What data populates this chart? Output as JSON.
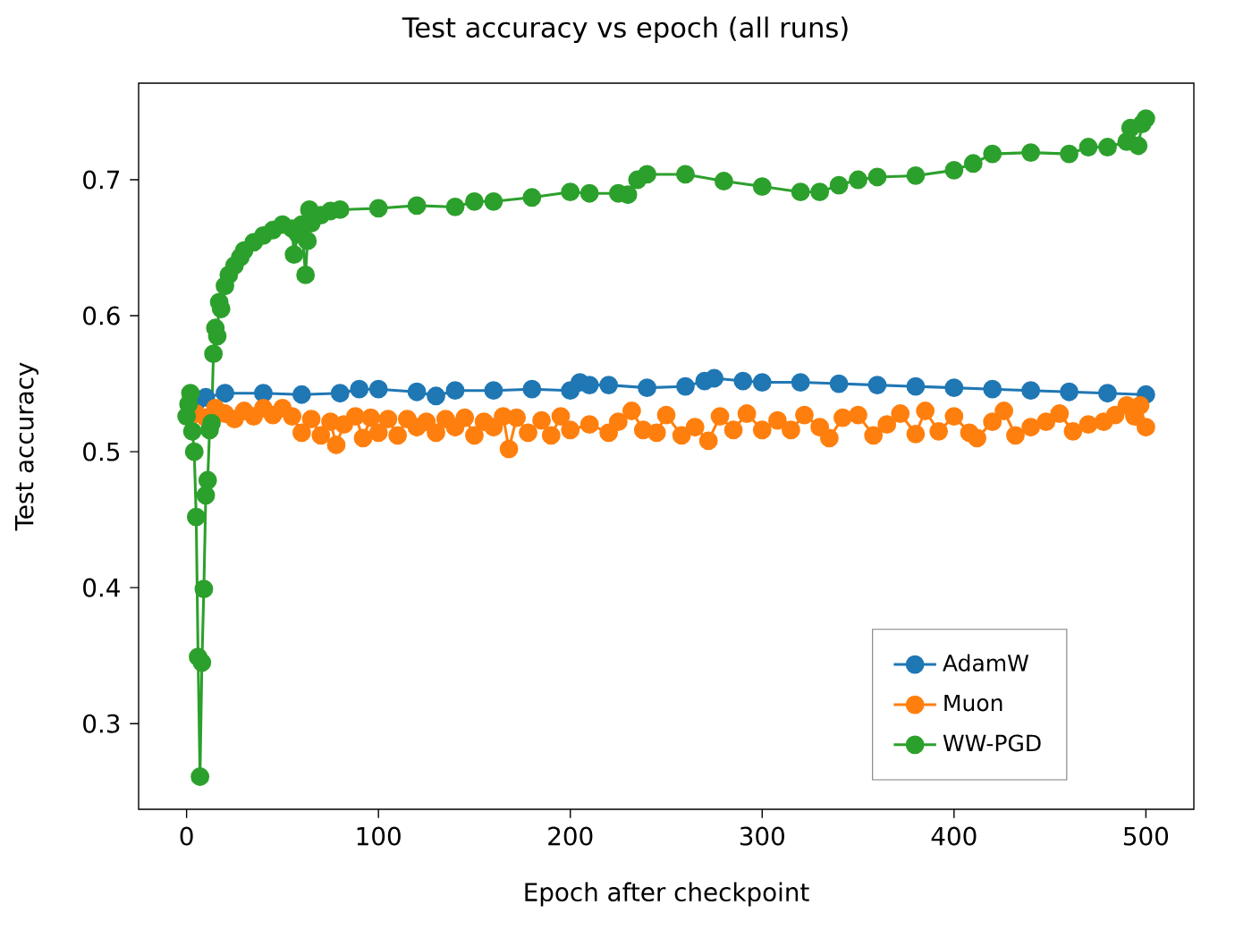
{
  "chart_data": {
    "type": "line",
    "title": "Test accuracy vs epoch (all runs)",
    "xlabel": "Epoch after checkpoint",
    "ylabel": "Test accuracy",
    "xlim": [
      -25,
      525
    ],
    "ylim": [
      0.237,
      0.771
    ],
    "xticks": [
      0,
      100,
      200,
      300,
      400,
      500
    ],
    "yticks": [
      0.3,
      0.4,
      0.5,
      0.6,
      0.7
    ],
    "grid": false,
    "legend": "bottom right",
    "marker": "circle",
    "line_style": "solid",
    "series": [
      {
        "name": "AdamW",
        "color": "#1f77b4",
        "x": [
          5,
          10,
          20,
          40,
          60,
          80,
          90,
          100,
          120,
          130,
          140,
          160,
          180,
          200,
          205,
          210,
          220,
          240,
          260,
          270,
          275,
          290,
          300,
          320,
          340,
          360,
          380,
          400,
          420,
          440,
          460,
          480,
          500
        ],
        "values": [
          0.536,
          0.54,
          0.543,
          0.543,
          0.542,
          0.543,
          0.546,
          0.546,
          0.544,
          0.541,
          0.545,
          0.545,
          0.546,
          0.545,
          0.551,
          0.549,
          0.549,
          0.547,
          0.548,
          0.552,
          0.554,
          0.552,
          0.551,
          0.551,
          0.55,
          0.549,
          0.548,
          0.547,
          0.546,
          0.545,
          0.544,
          0.543,
          0.542
        ]
      },
      {
        "name": "Muon",
        "color": "#ff7f0e",
        "x": [
          5,
          10,
          15,
          20,
          25,
          30,
          35,
          40,
          45,
          50,
          55,
          60,
          65,
          70,
          75,
          78,
          82,
          88,
          92,
          96,
          100,
          105,
          110,
          115,
          120,
          125,
          130,
          135,
          140,
          145,
          150,
          155,
          160,
          165,
          168,
          172,
          178,
          185,
          190,
          195,
          200,
          210,
          220,
          225,
          232,
          238,
          245,
          250,
          258,
          265,
          272,
          278,
          285,
          292,
          300,
          308,
          315,
          322,
          330,
          335,
          342,
          350,
          358,
          365,
          372,
          380,
          385,
          392,
          400,
          408,
          412,
          420,
          426,
          432,
          440,
          448,
          455,
          462,
          470,
          478,
          484,
          490,
          494,
          497,
          500
        ],
        "values": [
          0.528,
          0.525,
          0.532,
          0.528,
          0.524,
          0.53,
          0.526,
          0.532,
          0.527,
          0.532,
          0.526,
          0.514,
          0.524,
          0.512,
          0.522,
          0.505,
          0.52,
          0.526,
          0.51,
          0.525,
          0.514,
          0.524,
          0.512,
          0.524,
          0.518,
          0.522,
          0.514,
          0.524,
          0.518,
          0.525,
          0.512,
          0.522,
          0.518,
          0.526,
          0.502,
          0.525,
          0.514,
          0.523,
          0.512,
          0.526,
          0.516,
          0.52,
          0.514,
          0.522,
          0.53,
          0.516,
          0.514,
          0.527,
          0.512,
          0.518,
          0.508,
          0.526,
          0.516,
          0.528,
          0.516,
          0.523,
          0.516,
          0.527,
          0.518,
          0.51,
          0.525,
          0.527,
          0.512,
          0.52,
          0.528,
          0.513,
          0.53,
          0.515,
          0.526,
          0.514,
          0.51,
          0.522,
          0.53,
          0.512,
          0.518,
          0.522,
          0.528,
          0.515,
          0.52,
          0.522,
          0.527,
          0.534,
          0.526,
          0.534,
          0.518
        ]
      },
      {
        "name": "WW-PGD",
        "color": "#2ca02c",
        "x": [
          0,
          1,
          2,
          3,
          4,
          5,
          6,
          7,
          8,
          9,
          10,
          11,
          12,
          13,
          14,
          15,
          16,
          17,
          18,
          20,
          22,
          25,
          28,
          30,
          35,
          40,
          45,
          50,
          55,
          56,
          58,
          60,
          62,
          63,
          64,
          65,
          70,
          75,
          80,
          100,
          120,
          140,
          150,
          160,
          180,
          200,
          210,
          225,
          230,
          235,
          240,
          260,
          280,
          300,
          320,
          330,
          340,
          350,
          360,
          380,
          400,
          410,
          420,
          440,
          460,
          470,
          480,
          490,
          492,
          496,
          498,
          500
        ],
        "values": [
          0.526,
          0.535,
          0.543,
          0.515,
          0.5,
          0.452,
          0.349,
          0.261,
          0.345,
          0.399,
          0.468,
          0.479,
          0.516,
          0.521,
          0.572,
          0.591,
          0.585,
          0.61,
          0.605,
          0.622,
          0.63,
          0.637,
          0.643,
          0.648,
          0.654,
          0.659,
          0.663,
          0.667,
          0.664,
          0.645,
          0.66,
          0.667,
          0.63,
          0.655,
          0.678,
          0.668,
          0.674,
          0.677,
          0.678,
          0.679,
          0.681,
          0.68,
          0.684,
          0.684,
          0.687,
          0.691,
          0.69,
          0.69,
          0.689,
          0.7,
          0.704,
          0.704,
          0.699,
          0.695,
          0.691,
          0.691,
          0.696,
          0.7,
          0.702,
          0.703,
          0.707,
          0.712,
          0.719,
          0.72,
          0.719,
          0.724,
          0.724,
          0.728,
          0.738,
          0.725,
          0.741,
          0.745
        ]
      }
    ]
  }
}
